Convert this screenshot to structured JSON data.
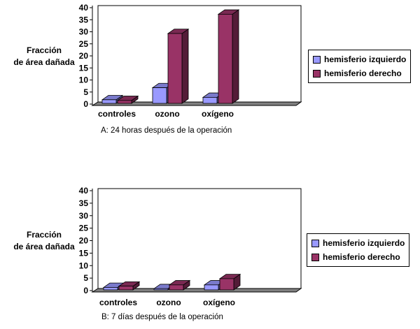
{
  "chart_data": [
    {
      "type": "bar",
      "ylabel_lines": [
        "Fracción",
        "de área dañada"
      ],
      "caption": "A: 24 horas después de la operación",
      "categories": [
        "controles",
        "ozono",
        "oxígeno"
      ],
      "series": [
        {
          "name": "hemisferio izquierdo",
          "color": "#9999ff",
          "values": [
            1.5,
            6.5,
            2.5
          ]
        },
        {
          "name": "hemisferio derecho",
          "color": "#993366",
          "values": [
            1.2,
            29,
            37
          ]
        }
      ],
      "ylim": [
        0,
        40
      ],
      "yticks": [
        "0",
        "5",
        "10",
        "15",
        "20",
        "25",
        "30",
        "35",
        "40"
      ],
      "grid": false,
      "legend": "right"
    },
    {
      "type": "bar",
      "ylabel_lines": [
        "Fracción",
        "de área dañada"
      ],
      "caption": "B: 7 días después de la operación",
      "categories": [
        "controles",
        "ozono",
        "oxígeno"
      ],
      "series": [
        {
          "name": "hemisferio izquierdo",
          "color": "#9999ff",
          "values": [
            1,
            0.5,
            2
          ]
        },
        {
          "name": "hemisferio derecho",
          "color": "#993366",
          "values": [
            1.5,
            2,
            4.5
          ]
        }
      ],
      "ylim": [
        0,
        40
      ],
      "yticks": [
        "0",
        "5",
        "10",
        "15",
        "20",
        "25",
        "30",
        "35",
        "40"
      ],
      "grid": false,
      "legend": "right"
    }
  ]
}
